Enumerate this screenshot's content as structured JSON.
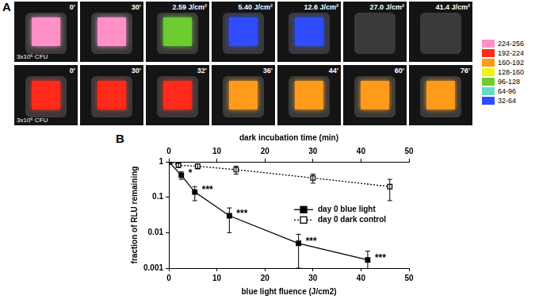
{
  "panel_a": {
    "label": "A",
    "rows": [
      {
        "cfu_label": "3x10⁶ CFU",
        "frames": [
          {
            "label": "0'",
            "signal": 240
          },
          {
            "label": "30'",
            "signal": 236
          },
          {
            "label": "2.59 J/cm²",
            "signal": 110
          },
          {
            "label": "5.40 J/cm²",
            "signal": 50
          },
          {
            "label": "12.6 J/cm²",
            "signal": 34
          },
          {
            "label": "27.0 J/cm²",
            "signal": 0
          },
          {
            "label": "41.4 J/cm²",
            "signal": 0
          }
        ]
      },
      {
        "cfu_label": "3x10⁶ CFU",
        "frames": [
          {
            "label": "0'",
            "signal": 200
          },
          {
            "label": "30'",
            "signal": 196
          },
          {
            "label": "32'",
            "signal": 194
          },
          {
            "label": "36'",
            "signal": 190
          },
          {
            "label": "44'",
            "signal": 186
          },
          {
            "label": "60'",
            "signal": 182
          },
          {
            "label": "76'",
            "signal": 178
          }
        ]
      }
    ],
    "color_scale": [
      {
        "label": "224-256",
        "min": 224,
        "max": 256,
        "color": "#ff90c8"
      },
      {
        "label": "192-224",
        "min": 192,
        "max": 224,
        "color": "#ff2a1a"
      },
      {
        "label": "160-192",
        "min": 160,
        "max": 192,
        "color": "#ff9a1a"
      },
      {
        "label": "128-160",
        "min": 128,
        "max": 160,
        "color": "#f2f21a"
      },
      {
        "label": "96-128",
        "min": 96,
        "max": 128,
        "color": "#6ccc30"
      },
      {
        "label": "64-96",
        "min": 64,
        "max": 96,
        "color": "#6ad8c8"
      },
      {
        "label": "32-64",
        "min": 32,
        "max": 64,
        "color": "#2f4cff"
      }
    ]
  },
  "chart_data": {
    "label": "B",
    "type": "line",
    "y_label": "fraction of RLU remaining",
    "x_label": "blue light fluence (J/cm2)",
    "x2_label": "dark incubation time (min)",
    "xlim": [
      0,
      50
    ],
    "xticks": [
      0,
      10,
      20,
      30,
      40,
      50
    ],
    "x2lim": [
      0,
      50
    ],
    "x2ticks": [
      0,
      10,
      20,
      30,
      40,
      50
    ],
    "ylim": [
      0.001,
      1
    ],
    "yticks": [
      0.001,
      0.01,
      0.1,
      1
    ],
    "log": "y",
    "grid": false,
    "legend": "right",
    "series": [
      {
        "name": "day 0 blue light",
        "color": "#000000",
        "marker": "square",
        "line_style": "solid",
        "x": [
          0,
          2.59,
          5.4,
          12.6,
          27,
          41.4
        ],
        "values": [
          1,
          0.42,
          0.14,
          0.03,
          0.005,
          0.0017
        ],
        "errors": [
          0,
          0.1,
          0.06,
          0.02,
          0.004,
          0.0013
        ],
        "significance": [
          null,
          "*",
          "***",
          "***",
          "***",
          "***"
        ]
      },
      {
        "name": "day 0 dark control",
        "color": "#000000",
        "marker": "open_square",
        "line_style": "dotted",
        "axis": "x2",
        "x": [
          0,
          2,
          6,
          14,
          30,
          46
        ],
        "values": [
          1,
          0.8,
          0.75,
          0.6,
          0.35,
          0.2
        ],
        "errors": [
          0,
          0.1,
          0.12,
          0.15,
          0.1,
          0.12
        ]
      }
    ]
  }
}
